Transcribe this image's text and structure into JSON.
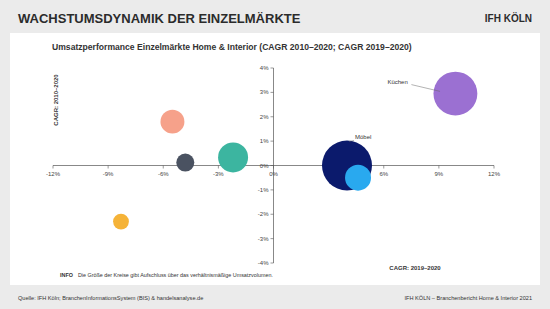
{
  "chart_data": {
    "type": "bubble",
    "title": "WACHSTUMSDYNAMIK DER EINZELMÄRKTE",
    "brand": "IFH KÖLN",
    "subtitle": "Umsatzperformance Einzelmärkte Home & Interior (CAGR 2010–2020; CAGR 2019–2020)",
    "xlabel": "CAGR: 2019–2020",
    "ylabel": "CAGR: 2010–2020",
    "note_label": "INFO",
    "note": "Die Größe der Kreise gibt Aufschluss über das verhältnismäßige Umsatzvolumen.",
    "source": "Quelle: IFH Köln; BranchenInformationsSystem (BIS) & handelsanalyse.de",
    "footer": "IFH KÖLN – Branchenbericht Home & Interior 2021",
    "labels": [
      "Küchen",
      "Möbel",
      null,
      null,
      null,
      null,
      null
    ],
    "x": [
      9.9,
      4.0,
      4.6,
      -2.2,
      -4.8,
      -5.5,
      -8.3
    ],
    "values": [
      2.95,
      0.0,
      -0.5,
      0.33,
      0.12,
      1.8,
      -2.3
    ],
    "sizes": [
      77,
      100,
      27,
      36,
      13,
      23,
      10
    ],
    "colors": [
      "#9b70d2",
      "#0b1a6c",
      "#29a9ef",
      "#3cb5a0",
      "#4a5261",
      "#f6a18a",
      "#f5b338"
    ],
    "xlim": [
      -12,
      12
    ],
    "ylim": [
      -4,
      4
    ],
    "xticks": [
      {
        "value": -12,
        "label": "-12%"
      },
      {
        "value": -9,
        "label": "-9%"
      },
      {
        "value": -6,
        "label": "-6%"
      },
      {
        "value": -3,
        "label": "-3%"
      },
      {
        "value": 0,
        "label": "0%"
      },
      {
        "value": 3,
        "label": "3%"
      },
      {
        "value": 6,
        "label": "6%"
      },
      {
        "value": 9,
        "label": "9%"
      },
      {
        "value": 12,
        "label": "12%"
      }
    ],
    "yticks": [
      {
        "value": -4,
        "label": "-4%"
      },
      {
        "value": -3,
        "label": "-3%"
      },
      {
        "value": -2,
        "label": "-2%"
      },
      {
        "value": -1,
        "label": "-1%"
      },
      {
        "value": 0,
        "label": "0%"
      },
      {
        "value": 1,
        "label": "1%"
      },
      {
        "value": 2,
        "label": "2%"
      },
      {
        "value": 3,
        "label": "3%"
      },
      {
        "value": 4,
        "label": "4%"
      }
    ],
    "grid": false
  }
}
